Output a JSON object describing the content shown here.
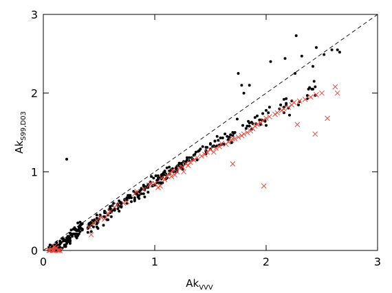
{
  "chart_data": {
    "type": "scatter",
    "title": "",
    "xlabel": {
      "base": "Ak",
      "sub": "VVV"
    },
    "ylabel": {
      "base": "Ak",
      "sub": "S99,D03"
    },
    "xlim": [
      0,
      3
    ],
    "ylim": [
      0,
      3
    ],
    "xticks": [
      0,
      1,
      2,
      3
    ],
    "yticks": [
      0,
      1,
      2,
      3
    ],
    "x_tick_labels": [
      "0",
      "1",
      "2",
      "3"
    ],
    "y_tick_labels": [
      "0",
      "1",
      "2",
      "3"
    ],
    "grid": false,
    "legend": "none",
    "reference_line": {
      "style": "dashed",
      "color": "#000000",
      "x": [
        0,
        3
      ],
      "y": [
        0,
        3
      ]
    },
    "series": [
      {
        "marker": "dot",
        "color": "#000000",
        "x": [
          0.22,
          0.05,
          0.28,
          0.1,
          0.35,
          0.12,
          0.05,
          0.23,
          0.28,
          0.08,
          0.11,
          0.23,
          0.22,
          0.2,
          0.12,
          0.14,
          0.29,
          0.2,
          0.33,
          0.3,
          0.14,
          0.11,
          0.08,
          0.08,
          0.14,
          0.24,
          0.11,
          0.22,
          0.15,
          0.29,
          0.23,
          0.27,
          0.24,
          0.12,
          0.12,
          0.24,
          0.12,
          0.15,
          0.15,
          0.1,
          0.3,
          0.11,
          0.34,
          0.3,
          0.31,
          0.17,
          0.1,
          0.11,
          0.29,
          0.23,
          0.18,
          0.32,
          0.12,
          0.1,
          0.33,
          0.2,
          0.2,
          0.25,
          0.14,
          0.33,
          0.22,
          0.13,
          0.24,
          0.25,
          0.26,
          0.07,
          0.31,
          0.31,
          0.32,
          0.12,
          0.16,
          0.33,
          0.2,
          0.35,
          0.28,
          0.11,
          0.15,
          0.35,
          0.21,
          0.2,
          0.32,
          0.24,
          0.3,
          0.07,
          0.31,
          0.35,
          0.12,
          0.25,
          0.07,
          0.08,
          0.29,
          0.18,
          0.29,
          0.33,
          0.21,
          0.15,
          0.29,
          0.22,
          0.2,
          0.34,
          0.12,
          0.07,
          0.06,
          0.08,
          0.15,
          0.19,
          0.24,
          0.2,
          0.07,
          0.13,
          0.27,
          0.17,
          0.33,
          0.29,
          0.21,
          0.19,
          0.16,
          0.14,
          0.15,
          0.22,
          0.51,
          0.67,
          0.83,
          1.0,
          0.91,
          0.44,
          0.97,
          0.93,
          0.6,
          0.43,
          0.69,
          0.59,
          0.94,
          0.55,
          0.68,
          0.51,
          0.69,
          0.81,
          0.61,
          0.79,
          0.94,
          0.77,
          0.6,
          0.43,
          0.73,
          0.84,
          0.58,
          0.5,
          0.88,
          0.86,
          0.82,
          0.4,
          0.68,
          0.6,
          0.43,
          0.7,
          0.91,
          0.49,
          0.78,
          0.86,
          0.4,
          0.7,
          0.62,
          0.7,
          0.61,
          0.45,
          0.48,
          0.42,
          0.75,
          0.58,
          0.99,
          0.41,
          0.62,
          0.75,
          0.77,
          0.56,
          0.98,
          0.92,
          0.48,
          0.55,
          0.44,
          0.45,
          0.96,
          0.9,
          0.45,
          0.7,
          0.46,
          0.64,
          0.75,
          0.4,
          0.9,
          0.83,
          0.64,
          0.82,
          0.43,
          0.49,
          0.84,
          0.48,
          0.87,
          0.55,
          0.9,
          0.45,
          0.91,
          0.48,
          0.76,
          0.73,
          0.83,
          0.57,
          0.7,
          0.67,
          0.67,
          0.88,
          0.7,
          0.48,
          0.61,
          0.54,
          0.79,
          0.49,
          0.61,
          0.85,
          0.68,
          0.41,
          0.82,
          0.54,
          0.94,
          0.88,
          0.94,
          0.78,
          0.64,
          0.41,
          0.99,
          0.86,
          1.05,
          1.67,
          1.01,
          1.4,
          1.04,
          1.61,
          1.19,
          1.1,
          1.24,
          1.34,
          1.06,
          1.19,
          1.7,
          1.06,
          1.2,
          1.69,
          1.05,
          1.38,
          1.5,
          1.05,
          1.06,
          1.03,
          1.14,
          1.25,
          1.7,
          1.23,
          1.06,
          1.65,
          1.34,
          1.24,
          1.08,
          1.21,
          1.2,
          1.24,
          1.13,
          1.29,
          1.02,
          1.28,
          1.39,
          1.68,
          1.08,
          1.62,
          1.06,
          1.11,
          1.46,
          1.37,
          1.43,
          1.11,
          1.07,
          1.31,
          1.5,
          1.02,
          1.13,
          1.06,
          1.1,
          1.24,
          1.31,
          1.46,
          1.03,
          1.27,
          1.07,
          1.26,
          1.41,
          1.54,
          1.18,
          1.59,
          1.2,
          1.09,
          1.22,
          1.13,
          1.71,
          1.56,
          1.09,
          1.33,
          1.2,
          1.67,
          1.23,
          1.58,
          1.17,
          1.54,
          1.46,
          1.13,
          1.66,
          1.15,
          1.59,
          1.47,
          1.5,
          1.36,
          1.46,
          1.29,
          1.54,
          1.52,
          1.53,
          1.56,
          1.61,
          1.07,
          1.63,
          1.72,
          1.35,
          1.25,
          1.03,
          1.16,
          1.1,
          1.74,
          1.57,
          1.54,
          2.0,
          1.99,
          1.79,
          2.12,
          1.88,
          2.23,
          2.18,
          2.41,
          2.16,
          2.29,
          2.13,
          2.44,
          2.42,
          1.95,
          1.91,
          2.16,
          1.94,
          2.21,
          1.87,
          2.3,
          2.0,
          1.85,
          1.82,
          2.39,
          1.83,
          1.9,
          2.18,
          1.92,
          1.98,
          2.37,
          1.96,
          2.03,
          1.87,
          2.44,
          1.99,
          2.38,
          1.95,
          2.37,
          2.18,
          2.02,
          1.97,
          2.2,
          1.84,
          2.16,
          1.85,
          2.26,
          2.04,
          2.43,
          2.42,
          2.17,
          0.21,
          0.63,
          2.27,
          2.52,
          2.66,
          2.59,
          2.64,
          2.45,
          2.32,
          1.78,
          1.85,
          1.8,
          1.75
        ],
        "y": [
          0.15,
          0.0,
          0.21,
          0.0,
          0.26,
          0.01,
          0.04,
          0.13,
          0.29,
          0.05,
          0.06,
          0.12,
          0.11,
          0.05,
          0.1,
          0.03,
          0.2,
          0.06,
          0.28,
          0.16,
          0.0,
          0.0,
          0.0,
          0.02,
          0.07,
          0.12,
          0.0,
          0.12,
          0.0,
          0.26,
          0.12,
          0.21,
          0.09,
          0.02,
          0.03,
          0.22,
          0.01,
          0.08,
          0.0,
          0.0,
          0.21,
          0.0,
          0.28,
          0.25,
          0.25,
          0.03,
          0.0,
          0.03,
          0.21,
          0.18,
          0.15,
          0.3,
          0.0,
          0.07,
          0.32,
          0.07,
          0.12,
          0.26,
          0.05,
          0.31,
          0.13,
          0.03,
          0.13,
          0.2,
          0.18,
          0.0,
          0.19,
          0.35,
          0.21,
          0.0,
          0.1,
          0.24,
          0.05,
          0.34,
          0.27,
          0.07,
          0.04,
          0.27,
          0.09,
          0.13,
          0.27,
          0.16,
          0.18,
          0.0,
          0.26,
          0.27,
          0.0,
          0.21,
          0.0,
          0.05,
          0.21,
          0.12,
          0.2,
          0.31,
          0.16,
          0.02,
          0.27,
          0.12,
          0.05,
          0.33,
          0.07,
          0.03,
          0.07,
          0.0,
          0.12,
          0.05,
          0.11,
          0.13,
          0.0,
          0.03,
          0.27,
          0.15,
          0.36,
          0.18,
          0.14,
          0.07,
          0.1,
          0.06,
          0.11,
          0.18,
          0.45,
          0.59,
          0.73,
          0.83,
          0.77,
          0.37,
          0.94,
          0.8,
          0.54,
          0.34,
          0.61,
          0.52,
          0.74,
          0.48,
          0.5,
          0.44,
          0.61,
          0.75,
          0.51,
          0.67,
          0.82,
          0.67,
          0.48,
          0.24,
          0.64,
          0.74,
          0.39,
          0.4,
          0.78,
          0.66,
          0.67,
          0.23,
          0.56,
          0.56,
          0.32,
          0.55,
          0.68,
          0.28,
          0.68,
          0.7,
          0.28,
          0.6,
          0.57,
          0.56,
          0.43,
          0.35,
          0.37,
          0.35,
          0.64,
          0.45,
          0.92,
          0.34,
          0.51,
          0.6,
          0.7,
          0.48,
          0.82,
          0.81,
          0.45,
          0.5,
          0.38,
          0.36,
          0.87,
          0.72,
          0.36,
          0.56,
          0.39,
          0.53,
          0.67,
          0.29,
          0.82,
          0.72,
          0.51,
          0.65,
          0.36,
          0.38,
          0.71,
          0.3,
          0.76,
          0.43,
          0.83,
          0.3,
          0.8,
          0.34,
          0.7,
          0.65,
          0.72,
          0.39,
          0.59,
          0.57,
          0.53,
          0.79,
          0.61,
          0.41,
          0.52,
          0.32,
          0.62,
          0.36,
          0.49,
          0.68,
          0.63,
          0.32,
          0.63,
          0.43,
          0.84,
          0.72,
          0.8,
          0.7,
          0.53,
          0.3,
          0.83,
          0.74,
          0.93,
          1.43,
          0.95,
          1.27,
          0.86,
          1.35,
          1.04,
          0.96,
          1.06,
          1.16,
          0.91,
          1.05,
          1.46,
          0.86,
          1.07,
          1.37,
          0.86,
          1.15,
          1.29,
          0.86,
          0.85,
          0.92,
          1.01,
          1.07,
          1.5,
          1.1,
          0.96,
          1.45,
          1.15,
          1.09,
          0.99,
          1.08,
          1.0,
          1.11,
          0.97,
          1.18,
          0.89,
          1.13,
          1.26,
          1.47,
          0.96,
          1.35,
          0.91,
          0.92,
          1.31,
          1.25,
          1.32,
          1.05,
          0.86,
          1.14,
          1.35,
          0.86,
          1.01,
          0.93,
          0.97,
          1.05,
          1.18,
          1.26,
          0.9,
          1.1,
          0.97,
          1.13,
          1.29,
          1.32,
          1.0,
          1.34,
          1.02,
          1.01,
          1.11,
          1.01,
          1.49,
          1.33,
          0.99,
          1.18,
          1.03,
          1.44,
          1.06,
          1.34,
          1.0,
          1.39,
          1.23,
          1.06,
          1.41,
          1.03,
          1.43,
          1.31,
          1.36,
          1.22,
          1.27,
          1.15,
          1.39,
          1.32,
          1.33,
          1.45,
          1.43,
          0.93,
          1.48,
          1.5,
          1.21,
          1.03,
          0.95,
          1.04,
          0.91,
          1.67,
          1.4,
          1.39,
          1.59,
          1.65,
          1.59,
          1.8,
          1.61,
          1.9,
          1.87,
          2.05,
          1.75,
          1.85,
          1.85,
          1.97,
          2.05,
          1.61,
          1.61,
          1.82,
          1.66,
          1.72,
          1.54,
          1.89,
          1.78,
          1.58,
          1.55,
          2.07,
          1.58,
          1.69,
          1.93,
          1.71,
          1.65,
          1.97,
          1.66,
          1.82,
          1.63,
          2.08,
          1.64,
          2.05,
          1.6,
          1.93,
          1.85,
          1.75,
          1.74,
          1.81,
          1.64,
          1.92,
          1.62,
          2.25,
          2.4,
          2.15,
          2.34,
          2.44,
          1.16,
          0.6,
          2.73,
          2.49,
          2.52,
          2.55,
          2.55,
          2.58,
          2.47,
          2.1,
          2.1,
          2.0,
          2.25
        ]
      },
      {
        "marker": "x",
        "color": "#e8483c",
        "x": [
          0.05,
          0.07,
          0.09,
          0.1,
          0.12,
          0.14,
          0.15,
          0.08,
          0.11,
          0.13,
          0.06,
          0.1,
          0.41,
          0.43,
          0.45,
          0.48,
          0.52,
          0.55,
          0.58,
          0.6,
          0.64,
          0.72,
          0.75,
          0.9,
          0.66,
          0.82,
          0.84,
          0.95,
          0.97,
          1.0,
          1.03,
          1.06,
          1.09,
          1.11,
          1.14,
          1.16,
          1.18,
          1.2,
          1.22,
          1.26,
          1.28,
          1.32,
          1.35,
          1.38,
          1.42,
          1.45,
          1.47,
          1.5,
          1.53,
          1.55,
          1.58,
          1.6,
          1.64,
          1.66,
          1.69,
          1.7,
          1.05,
          1.3,
          1.15,
          1.25,
          1.72,
          1.75,
          1.78,
          1.8,
          1.83,
          1.86,
          1.88,
          1.9,
          1.92,
          1.95,
          1.97,
          2.0,
          2.03,
          2.08,
          2.1,
          2.14,
          2.16,
          2.2,
          2.23,
          2.25,
          2.3,
          2.35,
          2.4,
          2.45,
          2.5,
          1.98,
          1.7,
          2.28,
          2.62,
          2.64,
          2.55,
          2.44
        ],
        "y": [
          0.0,
          0.02,
          0.0,
          0.05,
          0.03,
          0.0,
          0.0,
          0.0,
          0.03,
          0.0,
          0.0,
          0.0,
          0.3,
          0.2,
          0.35,
          0.38,
          0.42,
          0.4,
          0.46,
          0.5,
          0.55,
          0.6,
          0.62,
          0.78,
          0.58,
          0.72,
          0.75,
          0.83,
          0.85,
          0.85,
          0.8,
          0.92,
          0.9,
          0.95,
          0.98,
          1.02,
          0.96,
          1.0,
          1.05,
          1.0,
          1.1,
          1.12,
          1.15,
          1.18,
          1.2,
          1.22,
          1.25,
          1.28,
          1.25,
          1.3,
          1.32,
          1.36,
          1.35,
          1.38,
          1.4,
          1.42,
          0.82,
          1.08,
          0.94,
          1.06,
          1.42,
          1.44,
          1.46,
          1.48,
          1.5,
          1.52,
          1.55,
          1.58,
          1.6,
          1.62,
          1.65,
          1.68,
          1.7,
          1.73,
          1.75,
          1.78,
          1.8,
          1.82,
          1.85,
          1.88,
          1.9,
          1.92,
          1.95,
          1.98,
          2.0,
          0.82,
          1.1,
          1.6,
          2.08,
          2.0,
          1.68,
          1.48
        ]
      }
    ]
  }
}
